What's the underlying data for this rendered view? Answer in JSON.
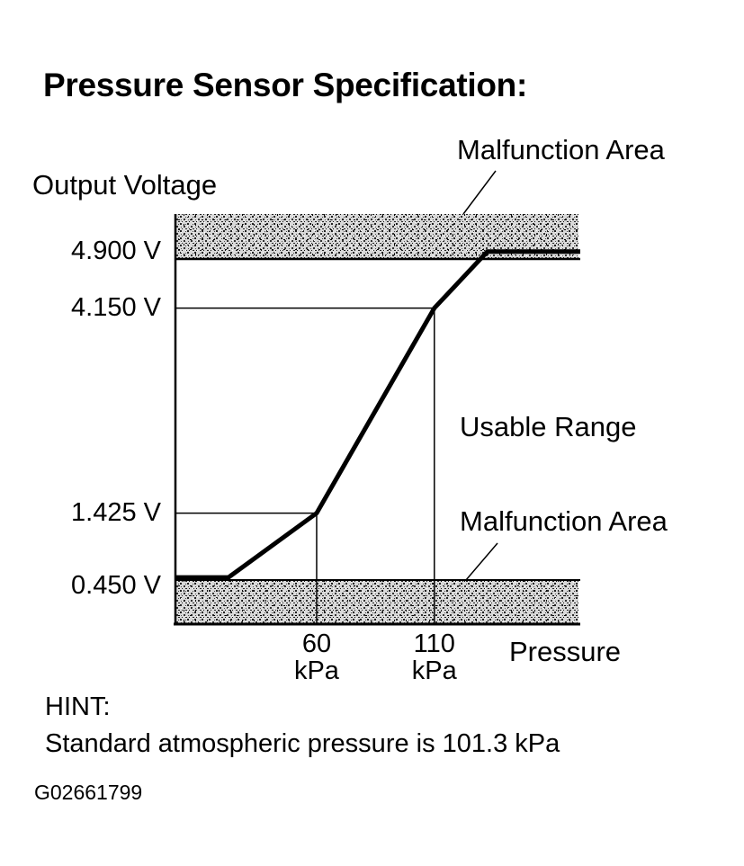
{
  "chart_data": {
    "type": "line",
    "title": "Pressure Sensor Specification:",
    "ylabel": "Output Voltage",
    "xlabel": "Pressure",
    "y_ticks": [
      {
        "value": 4.9,
        "label": "4.900 V"
      },
      {
        "value": 4.15,
        "label": "4.150 V"
      },
      {
        "value": 1.425,
        "label": "1.425 V"
      },
      {
        "value": 0.45,
        "label": "0.450 V"
      }
    ],
    "x_ticks": [
      {
        "value": 60,
        "label": "60",
        "unit": "kPa"
      },
      {
        "value": 110,
        "label": "110",
        "unit": "kPa"
      }
    ],
    "xlim": [
      0,
      172
    ],
    "ylim": [
      -0.05,
      5.4
    ],
    "series": [
      {
        "x": [
          0,
          22.5,
          60,
          110,
          132.5,
          172
        ],
        "y": [
          0.57,
          0.57,
          1.425,
          4.15,
          4.9,
          4.9
        ]
      }
    ],
    "regions": [
      {
        "label": "Malfunction Area",
        "from": 4.9,
        "to": 5.4
      },
      {
        "label": "Usable Range",
        "from": 0.45,
        "to": 4.9
      },
      {
        "label": "Malfunction Area",
        "from": -0.05,
        "to": 0.45
      }
    ],
    "hint": {
      "heading": "HINT:",
      "text": "Standard atmospheric pressure is 101.3 kPa"
    },
    "figure_id": "G02661799"
  }
}
